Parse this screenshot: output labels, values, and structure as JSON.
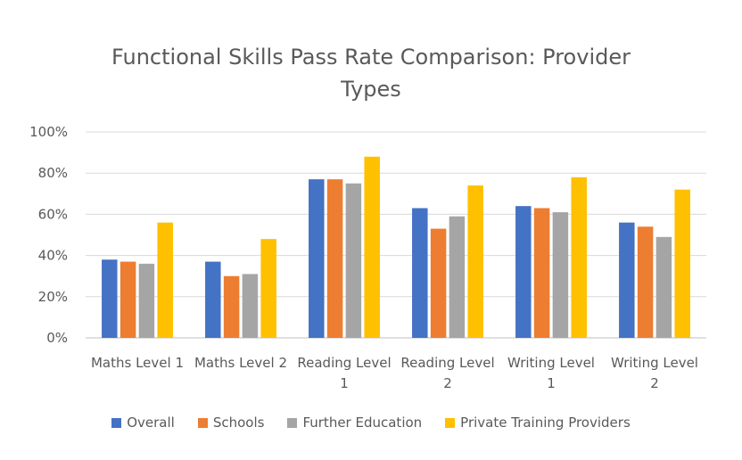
{
  "chart_data": {
    "type": "bar",
    "title_lines": [
      "Functional Skills Pass Rate Comparison: Provider",
      "Types"
    ],
    "categories": [
      [
        "Maths Level 1"
      ],
      [
        "Maths Level 2"
      ],
      [
        "Reading Level",
        "1"
      ],
      [
        "Reading Level",
        "2"
      ],
      [
        "Writing Level",
        "1"
      ],
      [
        "Writing Level",
        "2"
      ]
    ],
    "series": [
      {
        "name": "Overall",
        "color": "#4472C4",
        "values": [
          38,
          37,
          77,
          63,
          64,
          56
        ]
      },
      {
        "name": "Schools",
        "color": "#ED7D31",
        "values": [
          37,
          30,
          77,
          53,
          63,
          54
        ]
      },
      {
        "name": "Further Education",
        "color": "#A5A5A5",
        "values": [
          36,
          31,
          75,
          59,
          61,
          49
        ]
      },
      {
        "name": "Private Training Providers",
        "color": "#FFC000",
        "values": [
          56,
          48,
          88,
          74,
          78,
          72
        ]
      }
    ],
    "y_ticks": [
      "0%",
      "20%",
      "40%",
      "60%",
      "80%",
      "100%"
    ],
    "ylim": [
      0,
      100
    ],
    "grid": true,
    "legend_position": "bottom",
    "xlabel": "",
    "ylabel": ""
  }
}
